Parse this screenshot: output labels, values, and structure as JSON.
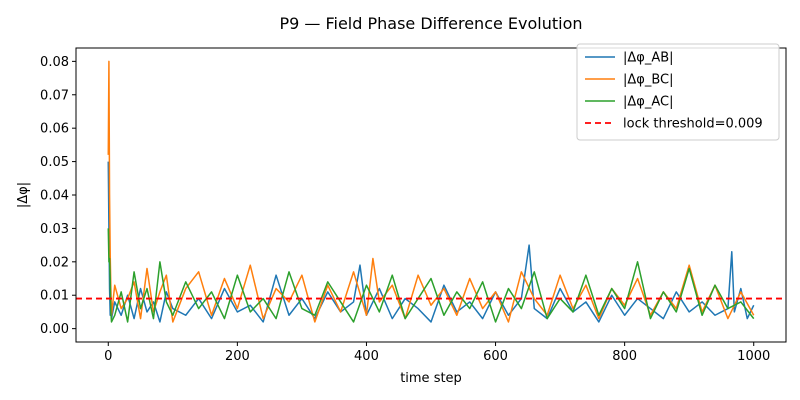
{
  "chart_data": {
    "type": "line",
    "title": "P9 — Field Phase Difference Evolution",
    "xlabel": "time step",
    "ylabel": "|Δφ|",
    "xlim": [
      -50,
      1050
    ],
    "ylim": [
      -0.004,
      0.084
    ],
    "xticks": [
      0,
      200,
      400,
      600,
      800,
      1000
    ],
    "yticks": [
      0.0,
      0.01,
      0.02,
      0.03,
      0.04,
      0.05,
      0.06,
      0.07,
      0.08
    ],
    "xtick_labels": [
      "0",
      "200",
      "400",
      "600",
      "800",
      "1000"
    ],
    "ytick_labels": [
      "0.00",
      "0.01",
      "0.02",
      "0.03",
      "0.04",
      "0.05",
      "0.06",
      "0.07",
      "0.08"
    ],
    "grid": false,
    "legend_position": "top-right",
    "series": [
      {
        "name": "|Δφ_AB|",
        "color": "#1f77b4",
        "x": [
          0,
          1,
          2,
          3,
          4,
          5,
          10,
          20,
          30,
          40,
          50,
          60,
          70,
          80,
          90,
          100,
          120,
          140,
          160,
          180,
          200,
          220,
          240,
          260,
          280,
          300,
          320,
          340,
          360,
          380,
          390,
          400,
          420,
          440,
          460,
          480,
          500,
          520,
          540,
          560,
          580,
          600,
          620,
          640,
          652,
          660,
          680,
          700,
          720,
          740,
          760,
          780,
          800,
          820,
          840,
          860,
          880,
          900,
          920,
          940,
          960,
          966,
          970,
          980,
          990,
          1000
        ],
        "values": [
          0.05,
          0.03,
          0.012,
          0.004,
          0.006,
          0.003,
          0.008,
          0.004,
          0.01,
          0.003,
          0.012,
          0.005,
          0.008,
          0.002,
          0.011,
          0.006,
          0.004,
          0.009,
          0.003,
          0.012,
          0.005,
          0.007,
          0.002,
          0.016,
          0.004,
          0.009,
          0.003,
          0.011,
          0.005,
          0.008,
          0.019,
          0.004,
          0.012,
          0.003,
          0.009,
          0.006,
          0.002,
          0.013,
          0.005,
          0.008,
          0.003,
          0.011,
          0.004,
          0.009,
          0.025,
          0.006,
          0.003,
          0.012,
          0.005,
          0.008,
          0.002,
          0.01,
          0.004,
          0.009,
          0.006,
          0.003,
          0.011,
          0.005,
          0.008,
          0.004,
          0.006,
          0.023,
          0.005,
          0.012,
          0.003,
          0.007
        ]
      },
      {
        "name": "|Δφ_BC|",
        "color": "#ff7f0e",
        "x": [
          0,
          1,
          2,
          3,
          4,
          5,
          10,
          20,
          30,
          40,
          50,
          60,
          70,
          80,
          90,
          100,
          120,
          140,
          160,
          180,
          200,
          220,
          240,
          260,
          280,
          300,
          320,
          340,
          360,
          380,
          400,
          410,
          420,
          440,
          460,
          480,
          500,
          520,
          540,
          560,
          580,
          600,
          620,
          640,
          660,
          680,
          700,
          720,
          740,
          760,
          780,
          800,
          820,
          840,
          860,
          880,
          900,
          920,
          940,
          960,
          980,
          1000
        ],
        "values": [
          0.052,
          0.08,
          0.04,
          0.022,
          0.012,
          0.004,
          0.013,
          0.006,
          0.009,
          0.014,
          0.003,
          0.018,
          0.005,
          0.011,
          0.016,
          0.002,
          0.012,
          0.017,
          0.004,
          0.015,
          0.006,
          0.019,
          0.003,
          0.012,
          0.008,
          0.016,
          0.002,
          0.013,
          0.005,
          0.017,
          0.004,
          0.021,
          0.008,
          0.013,
          0.003,
          0.016,
          0.007,
          0.012,
          0.004,
          0.015,
          0.006,
          0.011,
          0.002,
          0.017,
          0.009,
          0.004,
          0.016,
          0.006,
          0.013,
          0.003,
          0.012,
          0.007,
          0.015,
          0.004,
          0.011,
          0.006,
          0.019,
          0.005,
          0.013,
          0.003,
          0.011,
          0.004
        ]
      },
      {
        "name": "|Δφ_AC|",
        "color": "#2ca02c",
        "x": [
          0,
          1,
          2,
          3,
          4,
          5,
          10,
          20,
          30,
          40,
          50,
          60,
          70,
          80,
          90,
          100,
          120,
          140,
          160,
          180,
          200,
          220,
          240,
          260,
          280,
          300,
          320,
          340,
          360,
          380,
          400,
          420,
          440,
          460,
          480,
          500,
          520,
          540,
          560,
          580,
          600,
          620,
          640,
          660,
          680,
          700,
          720,
          740,
          760,
          780,
          800,
          820,
          840,
          860,
          880,
          900,
          920,
          940,
          960,
          980,
          1000
        ],
        "values": [
          0.03,
          0.02,
          0.021,
          0.015,
          0.005,
          0.002,
          0.004,
          0.011,
          0.002,
          0.017,
          0.006,
          0.012,
          0.003,
          0.02,
          0.008,
          0.004,
          0.014,
          0.006,
          0.011,
          0.003,
          0.016,
          0.005,
          0.009,
          0.003,
          0.017,
          0.006,
          0.004,
          0.014,
          0.008,
          0.002,
          0.013,
          0.005,
          0.016,
          0.003,
          0.009,
          0.015,
          0.004,
          0.011,
          0.006,
          0.014,
          0.002,
          0.012,
          0.006,
          0.017,
          0.003,
          0.009,
          0.005,
          0.016,
          0.004,
          0.012,
          0.006,
          0.02,
          0.003,
          0.011,
          0.005,
          0.018,
          0.004,
          0.013,
          0.006,
          0.008,
          0.003
        ]
      },
      {
        "name": "lock threshold=0.009",
        "color": "#ff0000",
        "style": "dashed",
        "y_constant": 0.009
      }
    ]
  }
}
